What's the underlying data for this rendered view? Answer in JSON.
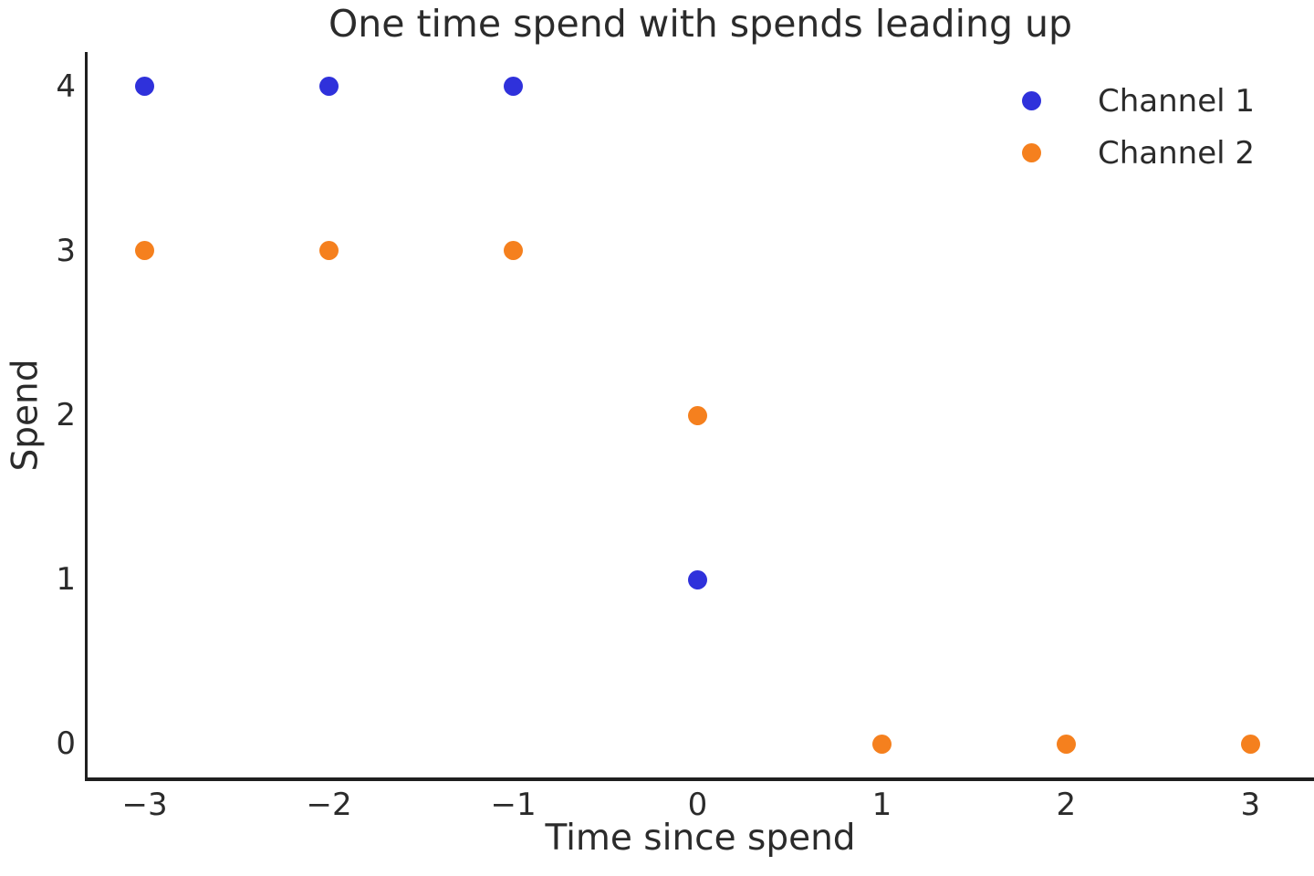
{
  "figure": {
    "title": "One time spend with spends leading up",
    "xlabel": "Time since spend",
    "ylabel": "Spend"
  },
  "colors": {
    "channel1": "#2f31db",
    "channel2": "#f5801e",
    "text": "#2b2b2b",
    "spine": "#1f1f1f",
    "background": "#ffffff"
  },
  "legend": {
    "position": "upper right",
    "frame": false,
    "entries": [
      {
        "label": "Channel 1",
        "color": "#2f31db"
      },
      {
        "label": "Channel 2",
        "color": "#f5801e"
      }
    ]
  },
  "chart_data": {
    "type": "scatter",
    "title": "One time spend with spends leading up",
    "xlabel": "Time since spend",
    "ylabel": "Spend",
    "xlim": [
      -3.315,
      3.345
    ],
    "ylim": [
      -0.222,
      4.211
    ],
    "grid": false,
    "marker_size_px": 21,
    "xticks": {
      "values": [
        -3,
        -2,
        -1,
        0,
        1,
        2,
        3
      ],
      "labels": [
        "−3",
        "−2",
        "−1",
        "0",
        "1",
        "2",
        "3"
      ]
    },
    "yticks": {
      "values": [
        0,
        1,
        2,
        3,
        4
      ],
      "labels": [
        "0",
        "1",
        "2",
        "3",
        "4"
      ]
    },
    "series": [
      {
        "name": "Channel 1",
        "color": "#2f31db",
        "points": [
          [
            -3,
            4
          ],
          [
            -2,
            4
          ],
          [
            -1,
            4
          ],
          [
            0,
            1
          ]
        ]
      },
      {
        "name": "Channel 2",
        "color": "#f5801e",
        "points": [
          [
            -3,
            3
          ],
          [
            -2,
            3
          ],
          [
            -1,
            3
          ],
          [
            0,
            2
          ],
          [
            1,
            0
          ],
          [
            2,
            0
          ],
          [
            3,
            0
          ]
        ]
      }
    ]
  }
}
